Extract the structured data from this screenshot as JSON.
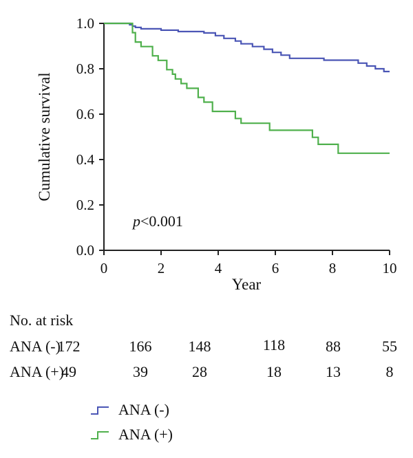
{
  "chart_data": {
    "type": "line",
    "subtype": "kaplan-meier step",
    "ylabel": "Cumulative survival",
    "xlabel": "Year",
    "xlim": [
      0,
      10
    ],
    "ylim": [
      0,
      1
    ],
    "x_ticks": [
      "0",
      "2",
      "4",
      "6",
      "8",
      "10"
    ],
    "y_ticks": [
      "0.0",
      "0.2",
      "0.4",
      "0.6",
      "0.8",
      "1.0"
    ],
    "annotation": {
      "italic": "p",
      "rest": "<0.001"
    },
    "series": [
      {
        "name": "ANA (-)",
        "color": "#4a55b5",
        "points": [
          [
            0,
            1.0
          ],
          [
            0.9,
            1.0
          ],
          [
            0.9,
            0.994
          ],
          [
            1.0,
            0.994
          ],
          [
            1.0,
            0.988
          ],
          [
            1.1,
            0.988
          ],
          [
            1.1,
            0.982
          ],
          [
            1.3,
            0.982
          ],
          [
            1.3,
            0.976
          ],
          [
            2.0,
            0.976
          ],
          [
            2.0,
            0.97
          ],
          [
            2.6,
            0.97
          ],
          [
            2.6,
            0.964
          ],
          [
            3.5,
            0.964
          ],
          [
            3.5,
            0.958
          ],
          [
            3.9,
            0.958
          ],
          [
            3.9,
            0.946
          ],
          [
            4.2,
            0.946
          ],
          [
            4.2,
            0.934
          ],
          [
            4.6,
            0.934
          ],
          [
            4.6,
            0.922
          ],
          [
            4.8,
            0.922
          ],
          [
            4.8,
            0.91
          ],
          [
            5.2,
            0.91
          ],
          [
            5.2,
            0.898
          ],
          [
            5.6,
            0.898
          ],
          [
            5.6,
            0.886
          ],
          [
            5.9,
            0.886
          ],
          [
            5.9,
            0.872
          ],
          [
            6.2,
            0.872
          ],
          [
            6.2,
            0.86
          ],
          [
            6.5,
            0.86
          ],
          [
            6.5,
            0.846
          ],
          [
            7.7,
            0.846
          ],
          [
            7.7,
            0.838
          ],
          [
            8.9,
            0.838
          ],
          [
            8.9,
            0.825
          ],
          [
            9.2,
            0.825
          ],
          [
            9.2,
            0.812
          ],
          [
            9.5,
            0.812
          ],
          [
            9.5,
            0.8
          ],
          [
            9.8,
            0.8
          ],
          [
            9.8,
            0.788
          ],
          [
            10,
            0.788
          ]
        ]
      },
      {
        "name": "ANA (+)",
        "color": "#4fb04c",
        "points": [
          [
            0,
            1.0
          ],
          [
            1.0,
            1.0
          ],
          [
            1.0,
            0.959
          ],
          [
            1.1,
            0.959
          ],
          [
            1.1,
            0.918
          ],
          [
            1.3,
            0.918
          ],
          [
            1.3,
            0.898
          ],
          [
            1.7,
            0.898
          ],
          [
            1.7,
            0.857
          ],
          [
            1.9,
            0.857
          ],
          [
            1.9,
            0.837
          ],
          [
            2.2,
            0.837
          ],
          [
            2.2,
            0.796
          ],
          [
            2.4,
            0.796
          ],
          [
            2.4,
            0.776
          ],
          [
            2.5,
            0.776
          ],
          [
            2.5,
            0.755
          ],
          [
            2.7,
            0.755
          ],
          [
            2.7,
            0.735
          ],
          [
            2.9,
            0.735
          ],
          [
            2.9,
            0.714
          ],
          [
            3.3,
            0.714
          ],
          [
            3.3,
            0.674
          ],
          [
            3.5,
            0.674
          ],
          [
            3.5,
            0.653
          ],
          [
            3.8,
            0.653
          ],
          [
            3.8,
            0.612
          ],
          [
            4.6,
            0.612
          ],
          [
            4.6,
            0.581
          ],
          [
            4.8,
            0.581
          ],
          [
            4.8,
            0.56
          ],
          [
            5.8,
            0.56
          ],
          [
            5.8,
            0.529
          ],
          [
            7.3,
            0.529
          ],
          [
            7.3,
            0.498
          ],
          [
            7.5,
            0.498
          ],
          [
            7.5,
            0.467
          ],
          [
            8.2,
            0.467
          ],
          [
            8.2,
            0.428
          ],
          [
            10,
            0.428
          ]
        ]
      }
    ]
  },
  "risk_table": {
    "title": "No. at risk",
    "rows": [
      {
        "label": "ANA (-)",
        "values": [
          "172",
          "166",
          "148",
          "118",
          "88",
          "55"
        ]
      },
      {
        "label": "ANA (+)",
        "values": [
          "49",
          "39",
          "28",
          "18",
          "13",
          "8"
        ]
      }
    ]
  },
  "legend": [
    {
      "label": "ANA (-)",
      "color": "#4a55b5"
    },
    {
      "label": "ANA (+)",
      "color": "#4fb04c"
    }
  ]
}
